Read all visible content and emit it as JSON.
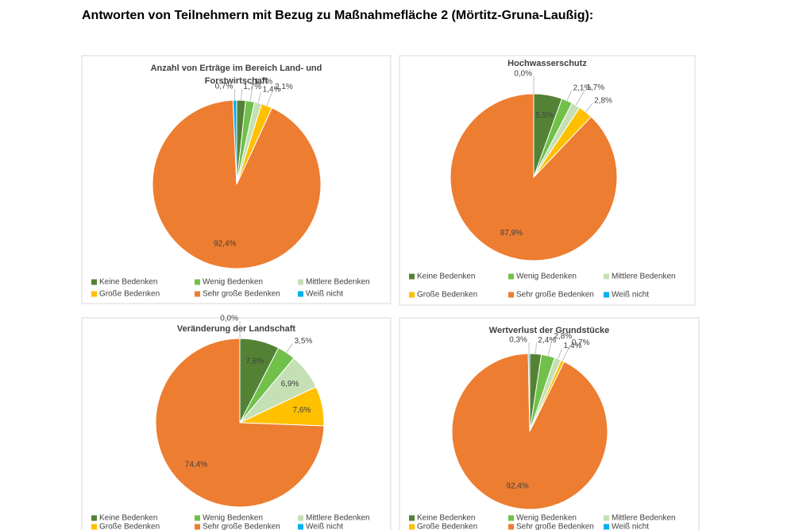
{
  "title": "Antworten von Teilnehmern mit Bezug zu Maßnahmefläche 2 (Mörtitz-Gruna-Laußig):",
  "chart_data": [
    {
      "type": "pie",
      "title": "Anzahl von Erträge im Bereich Land- und Forstwirtschaft",
      "categories": [
        "Keine Bedenken",
        "Wenig Bedenken",
        "Mittlere Bedenken",
        "Große Bedenken",
        "Sehr große Bedenken",
        "Weiß nicht"
      ],
      "values": [
        1.7,
        1.7,
        1.4,
        2.1,
        92.4,
        0.7
      ],
      "value_labels": [
        "1,7%",
        "1,7%",
        "1,4%",
        "2,1%",
        "92,4%",
        "0,7%"
      ],
      "colors": [
        "#548235",
        "#70c04a",
        "#c5e0b4",
        "#ffc000",
        "#ed7d31",
        "#00b0f0"
      ]
    },
    {
      "type": "pie",
      "title": "Hochwasserschutz",
      "categories": [
        "Keine Bedenken",
        "Wenig Bedenken",
        "Mittlere Bedenken",
        "Große Bedenken",
        "Sehr große Bedenken",
        "Weiß nicht"
      ],
      "values": [
        5.5,
        2.1,
        1.7,
        2.8,
        87.9,
        0.0
      ],
      "value_labels": [
        "5,5%",
        "2,1%",
        "1,7%",
        "2,8%",
        "87,9%",
        "0,0%"
      ],
      "colors": [
        "#548235",
        "#70c04a",
        "#c5e0b4",
        "#ffc000",
        "#ed7d31",
        "#00b0f0"
      ]
    },
    {
      "type": "pie",
      "title": "Veränderung der Landschaft",
      "categories": [
        "Keine Bedenken",
        "Wenig Bedenken",
        "Mittlere Bedenken",
        "Große Bedenken",
        "Sehr große Bedenken",
        "Weiß nicht"
      ],
      "values": [
        7.6,
        3.5,
        6.9,
        7.6,
        74.4,
        0.0
      ],
      "value_labels": [
        "7,6%",
        "3,5%",
        "6,9%",
        "7,6%",
        "74,4%",
        "0,0%"
      ],
      "colors": [
        "#548235",
        "#70c04a",
        "#c5e0b4",
        "#ffc000",
        "#ed7d31",
        "#00b0f0"
      ]
    },
    {
      "type": "pie",
      "title": "Wertverlust der Grundstücke",
      "categories": [
        "Keine Bedenken",
        "Wenig Bedenken",
        "Mittlere Bedenken",
        "Große Bedenken",
        "Sehr große Bedenken",
        "Weiß nicht"
      ],
      "values": [
        2.4,
        2.8,
        1.4,
        0.7,
        92.4,
        0.3
      ],
      "value_labels": [
        "2,4%",
        "2,8%",
        "1,4%",
        "0,7%",
        "92,4%",
        "0,3%"
      ],
      "colors": [
        "#548235",
        "#70c04a",
        "#c5e0b4",
        "#ffc000",
        "#ed7d31",
        "#00b0f0"
      ]
    }
  ]
}
